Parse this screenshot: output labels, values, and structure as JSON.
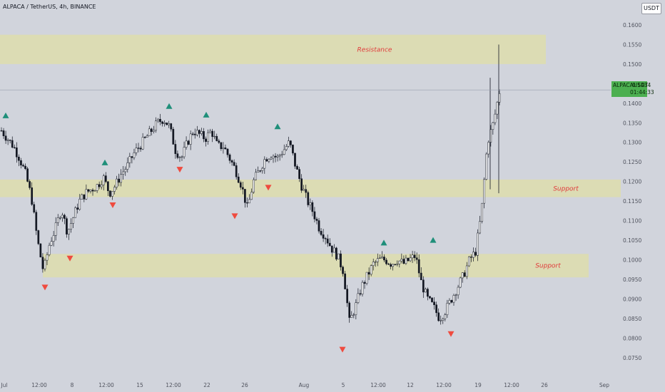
{
  "header": {
    "symbol_line": "ALPACA / TetherUS, 4h, BINANCE",
    "currency_button": "USDT"
  },
  "colors": {
    "background": "#d1d4dc",
    "zone_fill": "#dcdcb4",
    "up_arrow": "#1f8f7a",
    "down_arrow": "#ef4b3f",
    "label_red": "#e03a3a",
    "price_tag": "#4caf50"
  },
  "last_price": {
    "symbol": "ALPACAUSDT",
    "price": "0.1434",
    "countdown": "01:44:33"
  },
  "chart_data": {
    "type": "candlestick",
    "y_ticks": [
      "0.1600",
      "0.1550",
      "0.1500",
      "0.1450",
      "0.1400",
      "0.1350",
      "0.1300",
      "0.1250",
      "0.1200",
      "0.1150",
      "0.1100",
      "0.1050",
      "0.1000",
      "0.0950",
      "0.0900",
      "0.0850",
      "0.0800",
      "0.0750"
    ],
    "ylim": [
      0.0735,
      0.162
    ],
    "x_ticks": [
      "Jul",
      "12:00",
      "8",
      "12:00",
      "15",
      "12:00",
      "22",
      "26",
      "Aug",
      "5",
      "12:00",
      "12",
      "12:00",
      "19",
      "12:00",
      "26",
      "Sep"
    ],
    "zones": [
      {
        "label": "Resistance",
        "y_low": 0.15,
        "y_high": 0.1575
      },
      {
        "label": "Support",
        "y_low": 0.116,
        "y_high": 0.1205
      },
      {
        "label": "Support",
        "y_low": 0.0955,
        "y_high": 0.1015
      }
    ],
    "price_path": [
      [
        0,
        0.133
      ],
      [
        1,
        0.131
      ],
      [
        2,
        0.129
      ],
      [
        3,
        0.126
      ],
      [
        4,
        0.122
      ],
      [
        5,
        0.116
      ],
      [
        6,
        0.105
      ],
      [
        7,
        0.097
      ],
      [
        8,
        0.104
      ],
      [
        9,
        0.108
      ],
      [
        10,
        0.113
      ],
      [
        11,
        0.107
      ],
      [
        12,
        0.111
      ],
      [
        13,
        0.115
      ],
      [
        14,
        0.117
      ],
      [
        15,
        0.118
      ],
      [
        16,
        0.119
      ],
      [
        17,
        0.121
      ],
      [
        18,
        0.117
      ],
      [
        19,
        0.119
      ],
      [
        20,
        0.122
      ],
      [
        21,
        0.124
      ],
      [
        22,
        0.127
      ],
      [
        23,
        0.129
      ],
      [
        24,
        0.131
      ],
      [
        25,
        0.133
      ],
      [
        26,
        0.135
      ],
      [
        27,
        0.136
      ],
      [
        28,
        0.134
      ],
      [
        29,
        0.128
      ],
      [
        30,
        0.126
      ],
      [
        31,
        0.13
      ],
      [
        32,
        0.133
      ],
      [
        33,
        0.132
      ],
      [
        34,
        0.131
      ],
      [
        35,
        0.133
      ],
      [
        36,
        0.129
      ],
      [
        37,
        0.129
      ],
      [
        38,
        0.126
      ],
      [
        39,
        0.123
      ],
      [
        40,
        0.119
      ],
      [
        41,
        0.113
      ],
      [
        42,
        0.12
      ],
      [
        43,
        0.123
      ],
      [
        44,
        0.126
      ],
      [
        45,
        0.127
      ],
      [
        46,
        0.126
      ],
      [
        47,
        0.128
      ],
      [
        48,
        0.13
      ],
      [
        49,
        0.124
      ],
      [
        50,
        0.119
      ],
      [
        51,
        0.115
      ],
      [
        52,
        0.112
      ],
      [
        53,
        0.108
      ],
      [
        54,
        0.106
      ],
      [
        55,
        0.103
      ],
      [
        56,
        0.101
      ],
      [
        57,
        0.097
      ],
      [
        58,
        0.084
      ],
      [
        59,
        0.088
      ],
      [
        60,
        0.093
      ],
      [
        61,
        0.096
      ],
      [
        62,
        0.099
      ],
      [
        63,
        0.1
      ],
      [
        64,
        0.1
      ],
      [
        65,
        0.099
      ],
      [
        66,
        0.1
      ],
      [
        67,
        0.099
      ],
      [
        68,
        0.1
      ],
      [
        69,
        0.101
      ],
      [
        70,
        0.094
      ],
      [
        71,
        0.09
      ],
      [
        72,
        0.088
      ],
      [
        73,
        0.085
      ],
      [
        74,
        0.087
      ],
      [
        75,
        0.09
      ],
      [
        76,
        0.093
      ],
      [
        77,
        0.096
      ],
      [
        78,
        0.1
      ],
      [
        79,
        0.102
      ],
      [
        80,
        0.112
      ],
      [
        81,
        0.13
      ],
      [
        82,
        0.135
      ],
      [
        83,
        0.143
      ]
    ],
    "markers_up": [
      0.1367,
      0.1247,
      0.1391,
      0.1369,
      0.1339,
      0.1042,
      0.1049
    ],
    "markers_down": [
      0.0931,
      0.1005,
      0.1141,
      0.1232,
      0.1113,
      0.1186,
      0.0772,
      0.0812
    ]
  }
}
